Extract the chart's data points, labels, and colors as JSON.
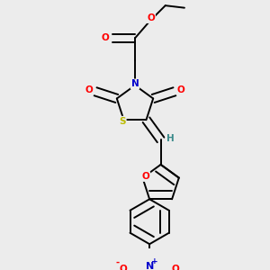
{
  "bg_color": "#ececec",
  "atom_colors": {
    "O": "#ff0000",
    "N": "#0000cc",
    "S": "#bbbb00",
    "C": "#000000",
    "H": "#3a8a8a"
  },
  "bond_color": "#000000",
  "figsize": [
    3.0,
    3.0
  ],
  "dpi": 100,
  "bond_lw": 1.4,
  "double_sep": 0.016,
  "font_size": 7.5
}
